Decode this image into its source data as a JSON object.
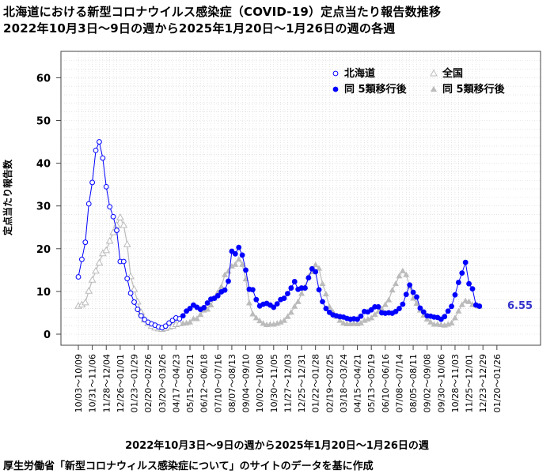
{
  "chart_data": {
    "type": "line",
    "title": "北海道における新型コロナウイルス感染症（COVID-19）定点当たり報告数推移",
    "subtitle": "2022年10月3日〜9日の週から2025年1月20日〜1月26日の週の各週",
    "xlabel": "2022年10月3日〜9日の週から2025年1月20日〜1月26日の週",
    "ylabel": "定点当たり報告数",
    "source": "厚生労働省「新型コロナウィルス感染症について」のサイトのデータを基に作成",
    "ylim": [
      0,
      65
    ],
    "yticks": [
      0,
      10,
      20,
      30,
      40,
      50,
      60
    ],
    "grid": true,
    "legend_position": "top-right",
    "x_tick_labels": [
      "10/03～10/09",
      "10/31～11/06",
      "11/28～12/04",
      "12/26～01/01",
      "01/23～01/29",
      "02/20～02/26",
      "03/20～03/26",
      "04/17～04/23",
      "05/15～05/21",
      "06/12～06/18",
      "07/10～07/16",
      "08/07～08/13",
      "09/04～09/10",
      "10/02～10/08",
      "10/30～11/05",
      "11/27～12/03",
      "12/25～12/31",
      "01/22～01/28",
      "02/19～02/25",
      "03/18～03/24",
      "04/15～04/21",
      "05/13～05/19",
      "06/10～06/16",
      "07/08～07/14",
      "08/05～08/11",
      "09/02～09/08",
      "09/30～10/06",
      "10/28～11/03",
      "11/25～12/01",
      "12/23～12/29",
      "01/20～01/26"
    ],
    "last_value_label": "6.55",
    "series": [
      {
        "name": "北海道",
        "marker": "open-circle",
        "color": "#0000ff",
        "values": [
          13.4,
          17.5,
          21.5,
          30.5,
          35.5,
          43,
          45,
          41.2,
          34.5,
          29.8,
          27.5,
          24.3,
          17,
          17,
          13,
          9.6,
          7.5,
          5.8,
          4.3,
          3.4,
          2.8,
          2.4,
          2.1,
          1.7,
          1.5,
          1.9,
          2.6,
          3.2,
          3.8,
          3.6
        ]
      },
      {
        "name": "同 5類移行後",
        "marker": "filled-circle",
        "color": "#0000ff",
        "values": [
          4.3,
          5.4,
          6,
          6.8,
          6.3,
          5.8,
          6.2,
          7.3,
          8.2,
          8.4,
          9,
          9.9,
          10.3,
          12.4,
          19.4,
          18.8,
          20.3,
          18.5,
          15,
          10.5,
          10.4,
          8.1,
          6.6,
          7,
          7.2,
          6.8,
          6.3,
          7.1,
          8.1,
          8.4,
          9.5,
          10.8,
          12.3,
          10.5,
          10.8,
          10.8,
          13.2,
          15.3,
          14.6,
          10.4,
          7.6,
          6,
          5.1,
          4.5,
          4.3,
          4.1,
          4,
          3.7,
          3.5,
          3.6,
          3.5,
          4.2,
          5.3,
          5.2,
          5.7,
          6.4,
          6.4,
          5,
          4.9,
          5,
          4.9,
          5.3,
          6,
          7,
          9.3,
          11.5,
          9.8,
          8.7,
          6.1,
          5.2,
          4.3,
          4.2,
          4,
          3.9,
          3.5,
          4.1,
          5.4,
          6.5,
          9.2,
          12.1,
          14.3,
          16.8,
          11.8,
          10.6,
          6.8,
          6.55
        ]
      },
      {
        "name": "全国",
        "marker": "open-triangle",
        "color": "#bbbbbb",
        "values": [
          6.6,
          6.9,
          7.4,
          10.1,
          12.7,
          14.8,
          16.7,
          18.9,
          19.6,
          21.8,
          23.8,
          25.5,
          27.3,
          25.5,
          21,
          13.5,
          10.5,
          7.6,
          5.1,
          3.4,
          2.5,
          1.9,
          1.5,
          1.3,
          1.2,
          1.4,
          1.7,
          1.9,
          2.3,
          2.5
        ]
      },
      {
        "name": "同 5類移行後",
        "marker": "filled-triangle",
        "color": "#bbbbbb",
        "values": [
          2.5,
          2.6,
          2.8,
          3.6,
          3.6,
          4.6,
          5.6,
          5.8,
          6.8,
          8.4,
          9.8,
          11.1,
          13.9,
          14.7,
          15.9,
          16.3,
          17.5,
          16.3,
          12.9,
          7.3,
          4.7,
          3.8,
          3.1,
          2.5,
          2.2,
          2.3,
          2.3,
          2.5,
          2.8,
          3.2,
          4.1,
          5.1,
          6.5,
          7.6,
          9.5,
          11.1,
          13.5,
          14.6,
          16.2,
          15.4,
          11.8,
          9.4,
          6.4,
          5.2,
          4.1,
          3.2,
          2.6,
          2.4,
          2.4,
          2.5,
          2.4,
          2.6,
          3.2,
          3.5,
          3.8,
          4.6,
          5.3,
          5.9,
          6.9,
          8,
          10.3,
          11.8,
          13.6,
          14.8,
          13.9,
          11.2,
          8.4,
          7.2,
          5.6,
          4.4,
          3.5,
          2.8,
          2.3,
          2.3,
          2.2,
          2.1,
          2.3,
          2.6,
          3.8,
          5.4,
          6.9,
          7.8,
          7.6,
          6.9,
          6.8,
          6.5
        ]
      }
    ]
  }
}
